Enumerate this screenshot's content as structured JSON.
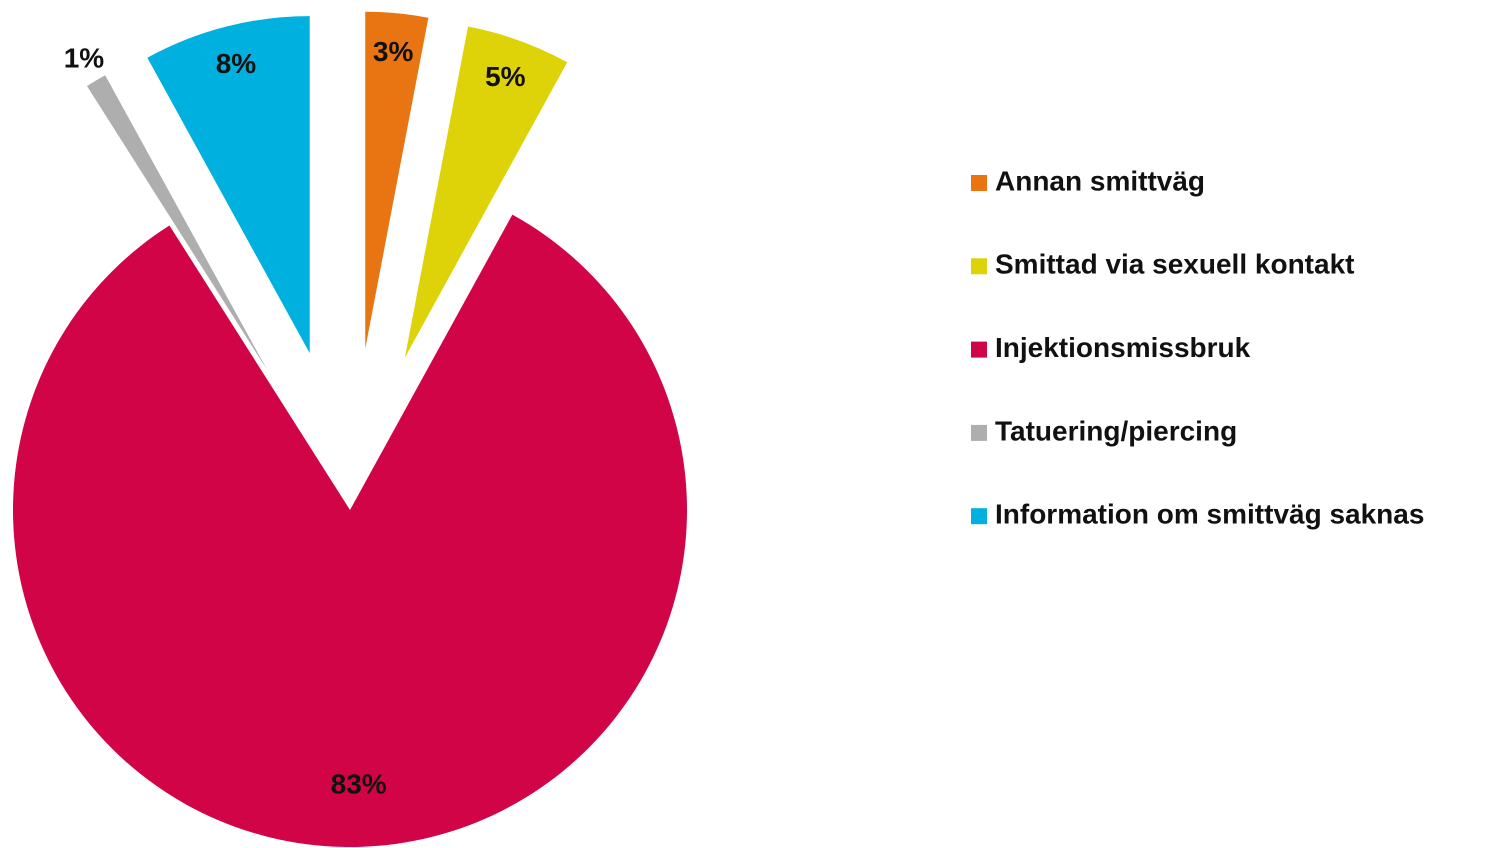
{
  "chart_data": {
    "type": "pie",
    "categories": [
      "Annan smittväg",
      "Smittad via sexuell kontakt",
      "Injektionsmissbruk",
      "Tatuering/piercing",
      "Information om smittväg saknas"
    ],
    "values": [
      3,
      5,
      83,
      1,
      8
    ],
    "value_labels": [
      "3%",
      "5%",
      "83%",
      "1%",
      "8%"
    ],
    "colors": [
      "#e87511",
      "#ded308",
      "#d00447",
      "#aeaeae",
      "#00b0de"
    ],
    "legend": "right"
  }
}
